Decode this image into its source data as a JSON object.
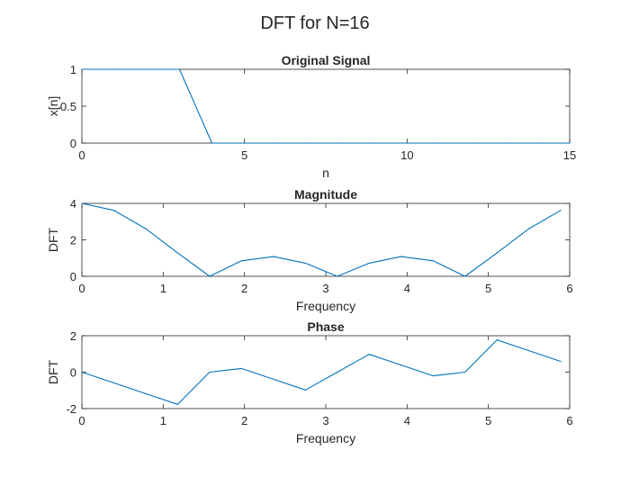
{
  "figure": {
    "title": "DFT for N=16"
  },
  "chart_data": [
    {
      "type": "line",
      "title": "Original Signal",
      "xlabel": "n",
      "ylabel": "x[n]",
      "xlim": [
        0,
        15
      ],
      "ylim": [
        0,
        1
      ],
      "xticks": [
        0,
        5,
        10,
        15
      ],
      "yticks": [
        0,
        0.5,
        1
      ],
      "grid": false,
      "color": "#0072BD",
      "series": [
        {
          "x": [
            0,
            1,
            2,
            3,
            4,
            5,
            6,
            7,
            8,
            9,
            10,
            11,
            12,
            13,
            14,
            15
          ],
          "y": [
            1,
            1,
            1,
            1,
            0,
            0,
            0,
            0,
            0,
            0,
            0,
            0,
            0,
            0,
            0,
            0
          ]
        }
      ]
    },
    {
      "type": "line",
      "title": "Magnitude",
      "xlabel": "Frequency",
      "ylabel": "DFT",
      "xlim": [
        0,
        6
      ],
      "ylim": [
        0,
        4
      ],
      "xticks": [
        0,
        1,
        2,
        3,
        4,
        5,
        6
      ],
      "yticks": [
        0,
        2,
        4
      ],
      "grid": false,
      "color": "#0072BD",
      "series": [
        {
          "x": [
            0,
            0.393,
            0.785,
            1.178,
            1.571,
            1.963,
            2.356,
            2.749,
            3.142,
            3.534,
            3.927,
            4.32,
            4.712,
            5.105,
            5.498,
            5.89
          ],
          "y": [
            4,
            3.62,
            2.61,
            1.28,
            0,
            0.85,
            1.08,
            0.72,
            0,
            0.72,
            1.08,
            0.85,
            0,
            1.28,
            2.61,
            3.62
          ]
        }
      ]
    },
    {
      "type": "line",
      "title": "Phase",
      "xlabel": "Frequency",
      "ylabel": "DFT",
      "xlim": [
        0,
        6
      ],
      "ylim": [
        -2,
        2
      ],
      "xticks": [
        0,
        1,
        2,
        3,
        4,
        5,
        6
      ],
      "yticks": [
        -2,
        0,
        2
      ],
      "grid": false,
      "color": "#0072BD",
      "series": [
        {
          "x": [
            0,
            0.393,
            0.785,
            1.178,
            1.571,
            1.963,
            2.356,
            2.749,
            3.142,
            3.534,
            3.927,
            4.32,
            4.712,
            5.105,
            5.498,
            5.89
          ],
          "y": [
            0,
            -0.59,
            -1.18,
            -1.77,
            0,
            0.2,
            -0.39,
            -0.98,
            0,
            0.98,
            0.39,
            -0.2,
            0,
            1.77,
            1.18,
            0.59
          ]
        }
      ]
    }
  ]
}
